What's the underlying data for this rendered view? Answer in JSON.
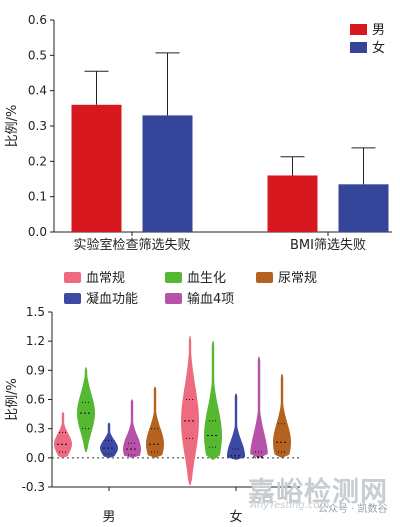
{
  "chart_data": [
    {
      "type": "bar",
      "ylabel": "比例/%",
      "ylim": [
        0,
        0.6
      ],
      "yticks": [
        "0.0",
        "0.1",
        "0.2",
        "0.3",
        "0.4",
        "0.5",
        "0.6"
      ],
      "categories": [
        "实验室检查筛选失败",
        "BMI筛选失败"
      ],
      "legend_position": "top-right",
      "series": [
        {
          "name": "男",
          "color": "#d7181f",
          "values": [
            0.36,
            0.16
          ],
          "error_upper": [
            0.455,
            0.213
          ]
        },
        {
          "name": "女",
          "color": "#35469a",
          "values": [
            0.33,
            0.135
          ],
          "error_upper": [
            0.507,
            0.238
          ]
        }
      ]
    },
    {
      "type": "violin",
      "ylabel": "比例/%",
      "ylim": [
        -0.3,
        1.5
      ],
      "yticks": [
        "-0.3",
        "0.0",
        "0.3",
        "0.6",
        "0.9",
        "1.2",
        "1.5"
      ],
      "groups": [
        "男",
        "女"
      ],
      "legend_position": "top",
      "series": [
        {
          "name": "血常规",
          "color": "#ee6b7f"
        },
        {
          "name": "血生化",
          "color": "#56b830"
        },
        {
          "name": "尿常规",
          "color": "#b3621f"
        },
        {
          "name": "凝血功能",
          "color": "#3c4aa6"
        },
        {
          "name": "输血4项",
          "color": "#b752a9"
        }
      ],
      "violins": [
        {
          "group": "男",
          "series": "血常规",
          "min": 0.0,
          "max": 0.47,
          "median": 0.14,
          "q1": 0.06,
          "q3": 0.26
        },
        {
          "group": "男",
          "series": "血生化",
          "min": 0.06,
          "max": 0.93,
          "median": 0.46,
          "q1": 0.3,
          "q3": 0.57
        },
        {
          "group": "男",
          "series": "凝血功能",
          "min": 0.0,
          "max": 0.36,
          "median": 0.1,
          "q1": 0.04,
          "q3": 0.18
        },
        {
          "group": "男",
          "series": "输血4项",
          "min": 0.0,
          "max": 0.6,
          "median": 0.09,
          "q1": 0.03,
          "q3": 0.15
        },
        {
          "group": "男",
          "series": "尿常规",
          "min": 0.0,
          "max": 0.73,
          "median": 0.14,
          "q1": 0.06,
          "q3": 0.3
        },
        {
          "group": "女",
          "series": "血常规",
          "min": -0.28,
          "max": 1.25,
          "median": 0.38,
          "q1": 0.2,
          "q3": 0.6
        },
        {
          "group": "女",
          "series": "血生化",
          "min": -0.02,
          "max": 1.2,
          "median": 0.23,
          "q1": 0.11,
          "q3": 0.38
        },
        {
          "group": "女",
          "series": "凝血功能",
          "min": -0.02,
          "max": 0.66,
          "median": 0.02,
          "q1": 0.0,
          "q3": 0.09
        },
        {
          "group": "女",
          "series": "输血4项",
          "min": 0.0,
          "max": 1.04,
          "median": 0.01,
          "q1": 0.0,
          "q3": 0.06
        },
        {
          "group": "女",
          "series": "尿常规",
          "min": 0.0,
          "max": 0.86,
          "median": 0.16,
          "q1": 0.06,
          "q3": 0.35
        }
      ],
      "reference_line": 0.0
    }
  ],
  "watermark": {
    "text": "嘉峪检测网",
    "subtext": "AnyTesting.com",
    "account": "公众号 · 凯数谷"
  }
}
